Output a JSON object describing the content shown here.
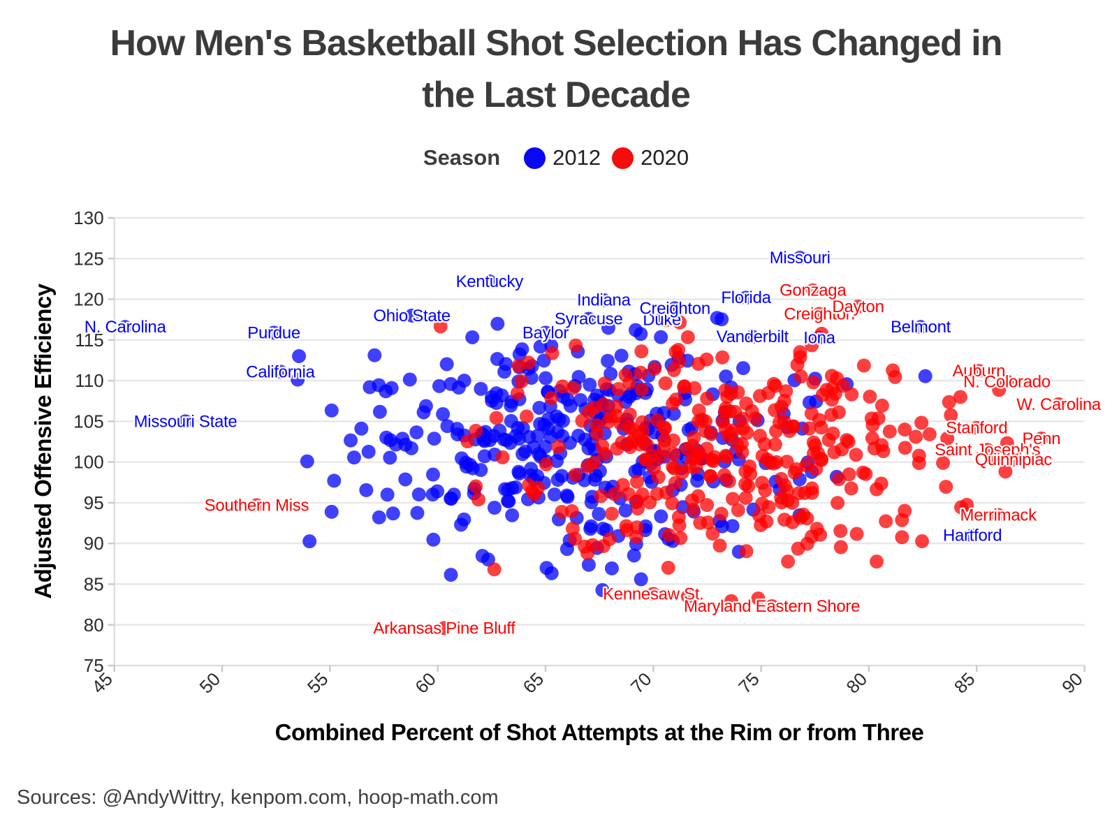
{
  "title": {
    "text": "How Men's Basketball Shot Selection Has Changed in the Last Decade",
    "line1": "How Men's Basketball Shot Selection Has Changed in",
    "line2": "the Last Decade"
  },
  "legend": {
    "title": "Season",
    "items": [
      {
        "label": "2012",
        "color": "#0808f5"
      },
      {
        "label": "2020",
        "color": "#f50d0d"
      }
    ]
  },
  "source": "Sources: @AndyWittry, kenpom.com, hoop-math.com",
  "chart_data": {
    "type": "scatter",
    "title": "How Men's Basketball Shot Selection Has Changed in the Last Decade",
    "xlabel": "Combined Percent of Shot Attempts at the Rim or from Three",
    "ylabel": "Adjusted Offensive Efficiency",
    "xlim": [
      45,
      90
    ],
    "ylim": [
      75,
      130
    ],
    "x_ticks": [
      45,
      50,
      55,
      60,
      65,
      70,
      75,
      80,
      85,
      90
    ],
    "y_ticks": [
      75,
      80,
      85,
      90,
      95,
      100,
      105,
      110,
      115,
      120,
      125,
      130
    ],
    "grid": "horizontal-only",
    "gridline_color": "#e7e7e7",
    "axis_line_color": "#dedede",
    "tick_mark_color": "#c9c9c9",
    "tick_label_color": "#2b2b2b",
    "legend_position": "top",
    "point_opacity": 0.75,
    "point_radius_px": 10,
    "series": [
      {
        "name": "2012",
        "color": "#0000ff",
        "labeled_points": [
          {
            "label": "N. Carolina",
            "x": 45.5,
            "y": 116.6
          },
          {
            "label": "Purdue",
            "x": 52.4,
            "y": 115.9
          },
          {
            "label": "California",
            "x": 52.7,
            "y": 111.1
          },
          {
            "label": "Missouri State",
            "x": 48.3,
            "y": 105.0
          },
          {
            "label": "Ohio State",
            "x": 58.8,
            "y": 118.0
          },
          {
            "label": "Kentucky",
            "x": 62.4,
            "y": 122.2
          },
          {
            "label": "Baylor",
            "x": 65.0,
            "y": 115.9
          },
          {
            "label": "Syracuse",
            "x": 67.0,
            "y": 117.6
          },
          {
            "label": "Indiana",
            "x": 67.7,
            "y": 119.9
          },
          {
            "label": "Duke",
            "x": 70.4,
            "y": 117.5
          },
          {
            "label": "Creighton",
            "x": 71.0,
            "y": 118.9
          },
          {
            "label": "Florida",
            "x": 74.3,
            "y": 120.2
          },
          {
            "label": "Vanderbilt",
            "x": 74.6,
            "y": 115.4
          },
          {
            "label": "Missouri",
            "x": 76.8,
            "y": 125.1
          },
          {
            "label": "Iona",
            "x": 77.7,
            "y": 115.3
          },
          {
            "label": "Belmont",
            "x": 82.4,
            "y": 116.6
          },
          {
            "label": "Hartford",
            "x": 84.8,
            "y": 91.0
          }
        ],
        "cloud": {
          "estimated": true,
          "count": 335,
          "x_mean": 66.2,
          "x_sd": 5.3,
          "x_range": [
            51.5,
            85.5
          ],
          "y_mean": 102.8,
          "y_sd": 7.0,
          "y_range": [
            83.5,
            119.0
          ],
          "seed": 1203
        }
      },
      {
        "name": "2020",
        "color": "#ff0000",
        "labeled_points": [
          {
            "label": "Southern Miss",
            "x": 51.6,
            "y": 94.7
          },
          {
            "label": "Arkansas Pine Bluff",
            "x": 60.3,
            "y": 79.6
          },
          {
            "label": "Kennesaw St.",
            "x": 70.0,
            "y": 83.8
          },
          {
            "label": "Maryland Eastern Shore",
            "x": 75.5,
            "y": 82.3
          },
          {
            "label": "Gonzaga",
            "x": 77.4,
            "y": 121.1
          },
          {
            "label": "Creighton",
            "x": 77.7,
            "y": 118.2
          },
          {
            "label": "Dayton",
            "x": 79.5,
            "y": 119.1
          },
          {
            "label": "Auburn",
            "x": 85.1,
            "y": 111.2
          },
          {
            "label": "N. Colorado",
            "x": 86.4,
            "y": 109.9
          },
          {
            "label": "W. Carolina",
            "x": 88.8,
            "y": 107.1
          },
          {
            "label": "Stanford",
            "x": 85.0,
            "y": 104.2
          },
          {
            "label": "Penn",
            "x": 88.0,
            "y": 102.9
          },
          {
            "label": "Saint Joseph's",
            "x": 85.5,
            "y": 101.5
          },
          {
            "label": "Quinnipiac",
            "x": 86.7,
            "y": 100.3
          },
          {
            "label": "Merrimack",
            "x": 86.0,
            "y": 93.5
          }
        ],
        "cloud": {
          "estimated": true,
          "count": 335,
          "x_mean": 73.6,
          "x_sd": 5.0,
          "x_range": [
            54.5,
            89.0
          ],
          "y_mean": 102.3,
          "y_sd": 7.0,
          "y_range": [
            79.5,
            118.0
          ],
          "seed": 77
        }
      }
    ]
  }
}
